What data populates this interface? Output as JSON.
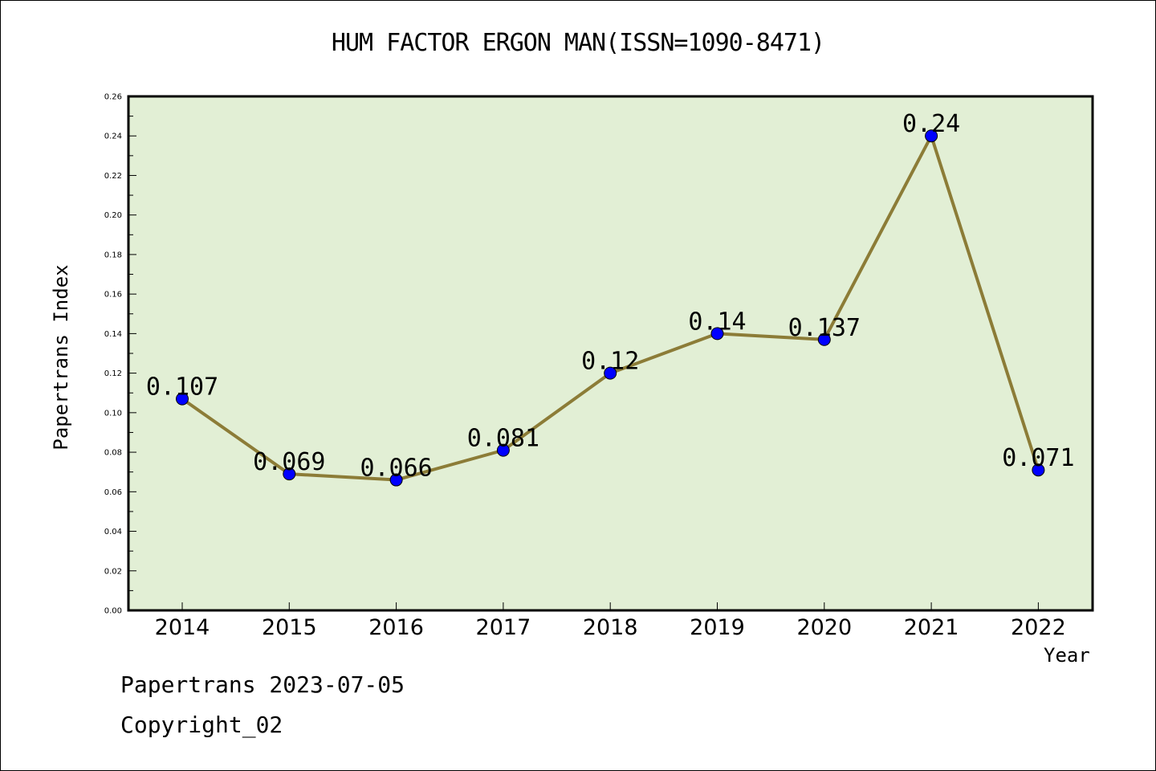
{
  "chart_data": {
    "type": "line",
    "title": "HUM FACTOR ERGON MAN(ISSN=1090-8471)",
    "xlabel": "Year",
    "ylabel": "Papertrans Index",
    "categories": [
      "2014",
      "2015",
      "2016",
      "2017",
      "2018",
      "2019",
      "2020",
      "2021",
      "2022"
    ],
    "series": [
      {
        "values": [
          0.107,
          0.069,
          0.066,
          0.081,
          0.12,
          0.14,
          0.137,
          0.24,
          0.071
        ],
        "labels": [
          "0.107",
          "0.069",
          "0.066",
          "0.081",
          "0.12",
          "0.14",
          "0.137",
          "0.24",
          "0.071"
        ]
      }
    ],
    "ylim": [
      0,
      0.26
    ],
    "yticks": [
      "0.00",
      "0.02",
      "0.04",
      "0.06",
      "0.08",
      "0.10",
      "0.12",
      "0.14",
      "0.16",
      "0.18",
      "0.20",
      "0.22",
      "0.24",
      "0.26"
    ],
    "grid": false,
    "legend": "none",
    "colors": {
      "plot_background": "#e2efd5",
      "line": "#8c7c37",
      "marker": "#0000ff"
    }
  },
  "footer": {
    "date_line": "Papertrans 2023-07-05",
    "copyright": "Copyright_02"
  }
}
